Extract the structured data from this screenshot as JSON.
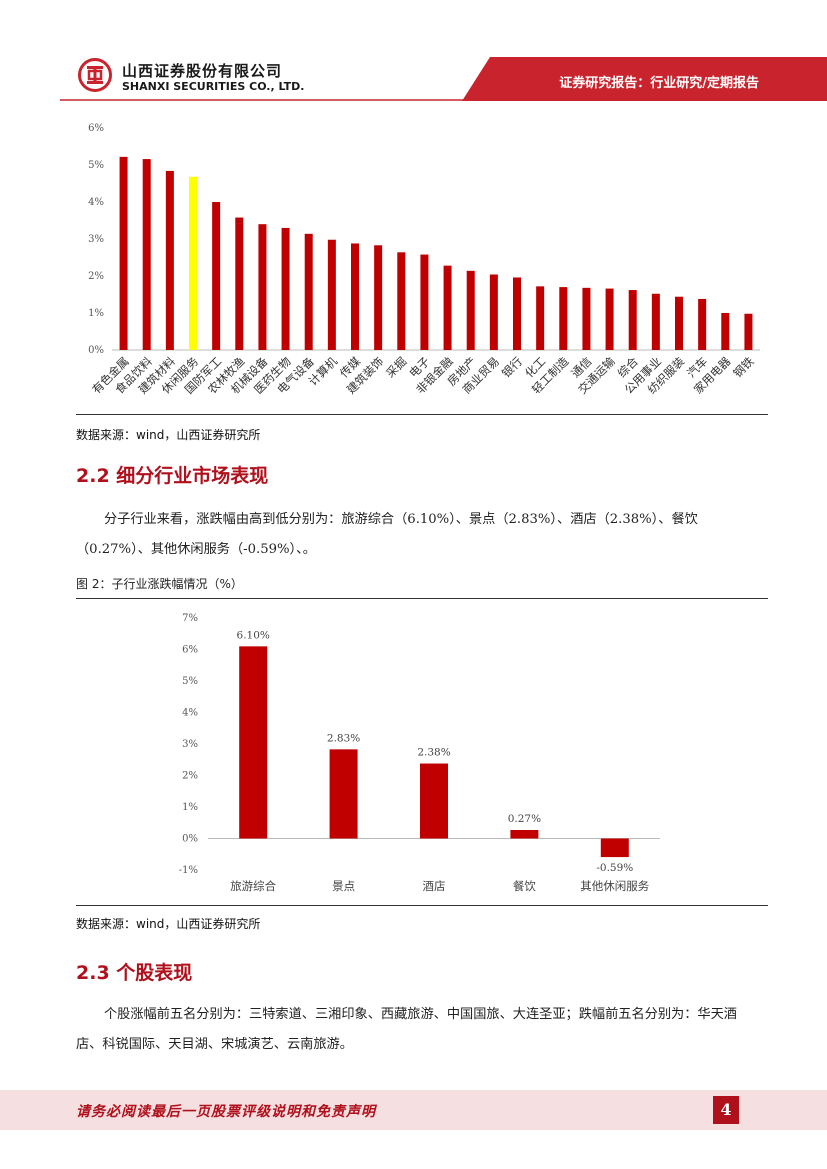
{
  "header": {
    "company_cn": "山西证券股份有限公司",
    "company_en": "SHANXI SECURITIES CO., LTD.",
    "report_type": "证券研究报告：行业研究/定期报告",
    "colors": {
      "band": "#c9242d",
      "brand": "#b0101c"
    }
  },
  "chart_data": [
    {
      "type": "bar",
      "categories": [
        "有色金属",
        "食品饮料",
        "建筑材料",
        "休闲服务",
        "国防军工",
        "农林牧渔",
        "机械设备",
        "医药生物",
        "电气设备",
        "计算机",
        "传媒",
        "建筑装饰",
        "采掘",
        "电子",
        "非银金融",
        "房地产",
        "商业贸易",
        "银行",
        "化工",
        "轻工制造",
        "通信",
        "交通运输",
        "综合",
        "公用事业",
        "纺织服装",
        "汽车",
        "家用电器",
        "钢铁"
      ],
      "values": [
        5.22,
        5.16,
        4.84,
        4.68,
        4.0,
        3.58,
        3.4,
        3.3,
        3.14,
        2.98,
        2.88,
        2.83,
        2.64,
        2.58,
        2.28,
        2.14,
        2.04,
        1.96,
        1.72,
        1.7,
        1.68,
        1.66,
        1.62,
        1.52,
        1.44,
        1.38,
        1.0,
        0.98
      ],
      "highlight": "休闲服务",
      "bar_color": "#c00000",
      "highlight_color": "#ffff00",
      "ylim": [
        0,
        6
      ],
      "yticks": [
        "0%",
        "1%",
        "2%",
        "3%",
        "4%",
        "5%",
        "6%"
      ],
      "grid": false
    },
    {
      "type": "bar",
      "title": "图 2：子行业涨跌幅情况（%）",
      "categories": [
        "旅游综合",
        "景点",
        "酒店",
        "餐饮",
        "其他休闲服务"
      ],
      "values": [
        6.1,
        2.83,
        2.38,
        0.27,
        -0.59
      ],
      "data_labels": [
        "6.10%",
        "2.83%",
        "2.38%",
        "0.27%",
        "-0.59%"
      ],
      "bar_color": "#c00000",
      "ylim": [
        -1,
        7
      ],
      "yticks": [
        "-1%",
        "0%",
        "1%",
        "2%",
        "3%",
        "4%",
        "5%",
        "6%",
        "7%"
      ],
      "grid": false
    }
  ],
  "sources": {
    "chart1": "数据来源：wind，山西证券研究所",
    "chart2": "数据来源：wind，山西证券研究所"
  },
  "section_2_2": {
    "title": "2.2 细分行业市场表现",
    "paragraph": "分子行业来看，涨跌幅由高到低分别为：旅游综合（6.10%）、景点（2.83%）、酒店（2.38%）、餐饮（0.27%）、其他休闲服务（-0.59%）、。"
  },
  "section_2_3": {
    "title": "2.3 个股表现",
    "paragraph": "个股涨幅前五名分别为：三特索道、三湘印象、西藏旅游、中国国旅、大连圣亚；跌幅前五名分别为：华天酒店、科锐国际、天目湖、宋城演艺、云南旅游。"
  },
  "footer": {
    "disclaimer": "请务必阅读最后一页股票评级说明和免责声明",
    "page_number": "4"
  }
}
